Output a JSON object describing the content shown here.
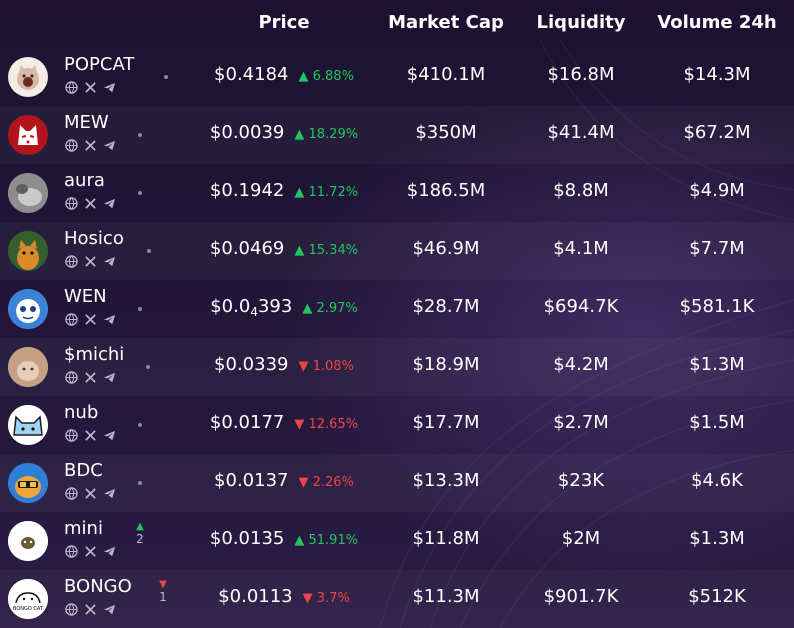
{
  "header": {
    "price": "Price",
    "market_cap": "Market Cap",
    "liquidity": "Liquidity",
    "volume": "Volume 24h"
  },
  "colors": {
    "up": "#22c55e",
    "down": "#ef4444",
    "background": "#1f1433"
  },
  "rows": [
    {
      "name": "POPCAT",
      "price": "$0.4184",
      "change": "6.88%",
      "dir": "up",
      "market_cap": "$410.1M",
      "liquidity": "$16.8M",
      "volume": "$14.3M",
      "rank": "",
      "rank_dir": "",
      "avatar": "popcat-avatar"
    },
    {
      "name": "MEW",
      "price": "$0.0039",
      "change": "18.29%",
      "dir": "up",
      "market_cap": "$350M",
      "liquidity": "$41.4M",
      "volume": "$67.2M",
      "rank": "",
      "rank_dir": "",
      "avatar": "mew-avatar"
    },
    {
      "name": "aura",
      "price": "$0.1942",
      "change": "11.72%",
      "dir": "up",
      "market_cap": "$186.5M",
      "liquidity": "$8.8M",
      "volume": "$4.9M",
      "rank": "",
      "rank_dir": "",
      "avatar": "aura-avatar"
    },
    {
      "name": "Hosico",
      "price": "$0.0469",
      "change": "15.34%",
      "dir": "up",
      "market_cap": "$46.9M",
      "liquidity": "$4.1M",
      "volume": "$7.7M",
      "rank": "",
      "rank_dir": "",
      "avatar": "hosico-avatar"
    },
    {
      "name": "WEN",
      "price_main": "$0.0",
      "price_sub": "4",
      "price_tail": "393",
      "change": "2.97%",
      "dir": "up",
      "market_cap": "$28.7M",
      "liquidity": "$694.7K",
      "volume": "$581.1K",
      "rank": "",
      "rank_dir": "",
      "avatar": "wen-avatar"
    },
    {
      "name": "$michi",
      "price": "$0.0339",
      "change": "1.08%",
      "dir": "down",
      "market_cap": "$18.9M",
      "liquidity": "$4.2M",
      "volume": "$1.3M",
      "rank": "",
      "rank_dir": "",
      "avatar": "michi-avatar"
    },
    {
      "name": "nub",
      "price": "$0.0177",
      "change": "12.65%",
      "dir": "down",
      "market_cap": "$17.7M",
      "liquidity": "$2.7M",
      "volume": "$1.5M",
      "rank": "",
      "rank_dir": "",
      "avatar": "nub-avatar"
    },
    {
      "name": "BDC",
      "price": "$0.0137",
      "change": "2.26%",
      "dir": "down",
      "market_cap": "$13.3M",
      "liquidity": "$23K",
      "volume": "$4.6K",
      "rank": "",
      "rank_dir": "",
      "avatar": "bdc-avatar"
    },
    {
      "name": "mini",
      "price": "$0.0135",
      "change": "51.91%",
      "dir": "up",
      "market_cap": "$11.8M",
      "liquidity": "$2M",
      "volume": "$1.3M",
      "rank": "2",
      "rank_dir": "up",
      "avatar": "mini-avatar"
    },
    {
      "name": "BONGO",
      "price": "$0.0113",
      "change": "3.7%",
      "dir": "down",
      "market_cap": "$11.3M",
      "liquidity": "$901.7K",
      "volume": "$512K",
      "rank": "1",
      "rank_dir": "down",
      "avatar": "bongo-avatar",
      "avatar_text": "BONGO CAT"
    }
  ]
}
